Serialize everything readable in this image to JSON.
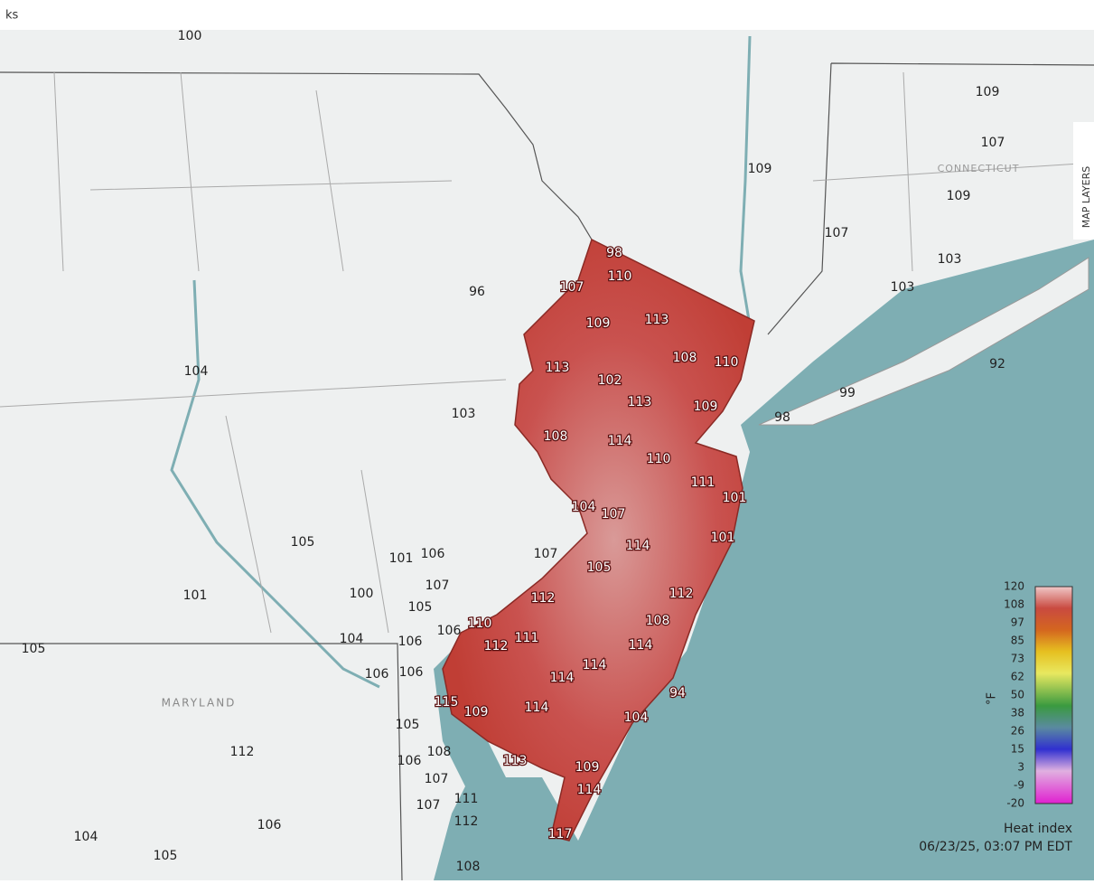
{
  "tab_text": "ks",
  "region_labels": [
    "CONNECTICUT",
    "MARYLAND"
  ],
  "map_layers_button": "MAP LAYERS",
  "nj_labels": [
    98,
    110,
    107,
    109,
    113,
    113,
    102,
    108,
    110,
    113,
    109,
    108,
    114,
    110,
    111,
    101,
    104,
    107,
    114,
    101,
    105,
    112,
    112,
    110,
    108,
    112,
    111,
    114,
    114,
    114,
    94,
    115,
    109,
    114,
    104,
    113,
    109,
    114,
    117
  ],
  "outside_labels": [
    100,
    96,
    104,
    103,
    99,
    98,
    92,
    105,
    101,
    106,
    107,
    107,
    101,
    100,
    105,
    106,
    105,
    104,
    106,
    106,
    106,
    105,
    112,
    108,
    106,
    107,
    107,
    111,
    104,
    112,
    106,
    105,
    108,
    109,
    107,
    109,
    109,
    107,
    103,
    103
  ],
  "legend": {
    "ticks": [
      120,
      108,
      97,
      85,
      73,
      62,
      50,
      38,
      26,
      15,
      3,
      -9,
      -20
    ],
    "unit": "°F",
    "title": "Heat index",
    "timestamp": "06/23/25, 03:07 PM EDT"
  }
}
